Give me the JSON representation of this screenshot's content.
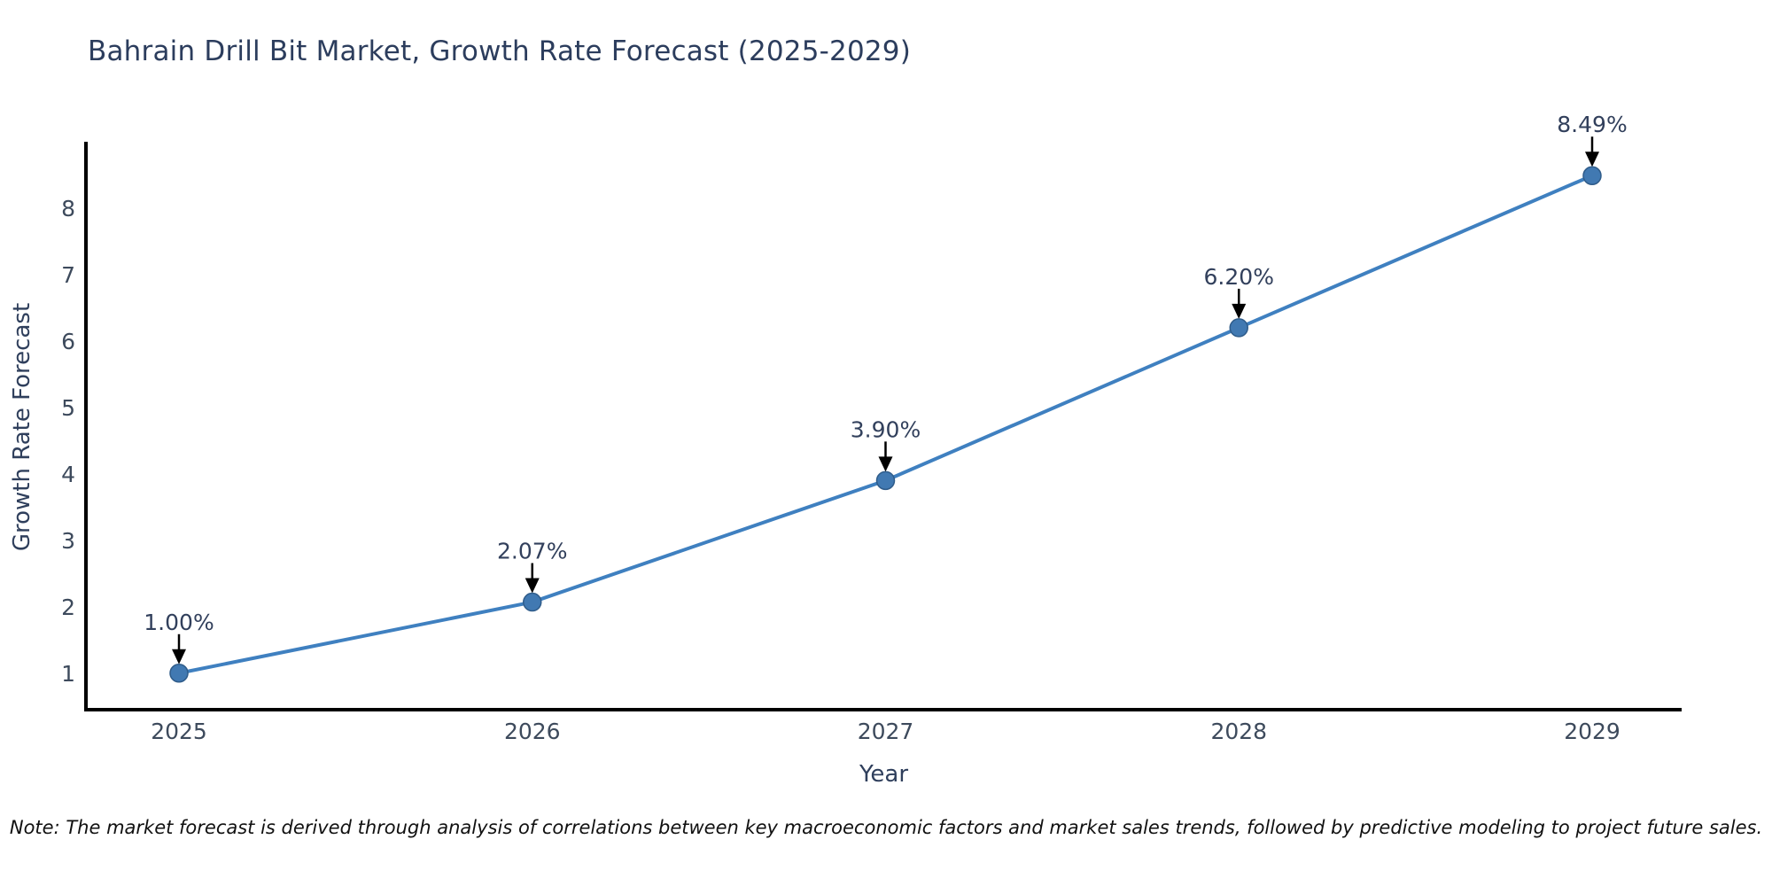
{
  "title": "Bahrain Drill Bit Market, Growth Rate Forecast (2025-2029)",
  "note": "Note: The market forecast is derived through analysis of correlations between key macroeconomic factors and market sales trends, followed by predictive modeling to project future sales.",
  "chart_data": {
    "type": "line",
    "title": "Bahrain Drill Bit Market, Growth Rate Forecast (2025-2029)",
    "xlabel": "Year",
    "ylabel": "Growth Rate Forecast",
    "categories": [
      "2025",
      "2026",
      "2027",
      "2028",
      "2029"
    ],
    "x": [
      2025,
      2026,
      2027,
      2028,
      2029
    ],
    "values": [
      1.0,
      2.07,
      3.9,
      6.2,
      8.49
    ],
    "point_labels": [
      "1.00%",
      "2.07%",
      "3.90%",
      "6.20%",
      "8.49%"
    ],
    "y_ticks": [
      1,
      2,
      3,
      4,
      5,
      6,
      7,
      8
    ],
    "ylim": [
      0.45,
      9.0
    ],
    "grid": false,
    "legend": "none",
    "annotation_style": "black-down-arrow-to-point",
    "colors": {
      "line": "#3f80c0",
      "marker_fill": "#4179b2",
      "marker_edge": "#2f5c8a",
      "arrow": "#000000",
      "axis_line": "#000000",
      "title_text": "#2c3d5d",
      "axis_title_text": "#2f3f5c",
      "tick_text": "#3d4a5c",
      "annotation_text": "#32405c",
      "note_text": "#111111",
      "background": "#ffffff"
    }
  }
}
